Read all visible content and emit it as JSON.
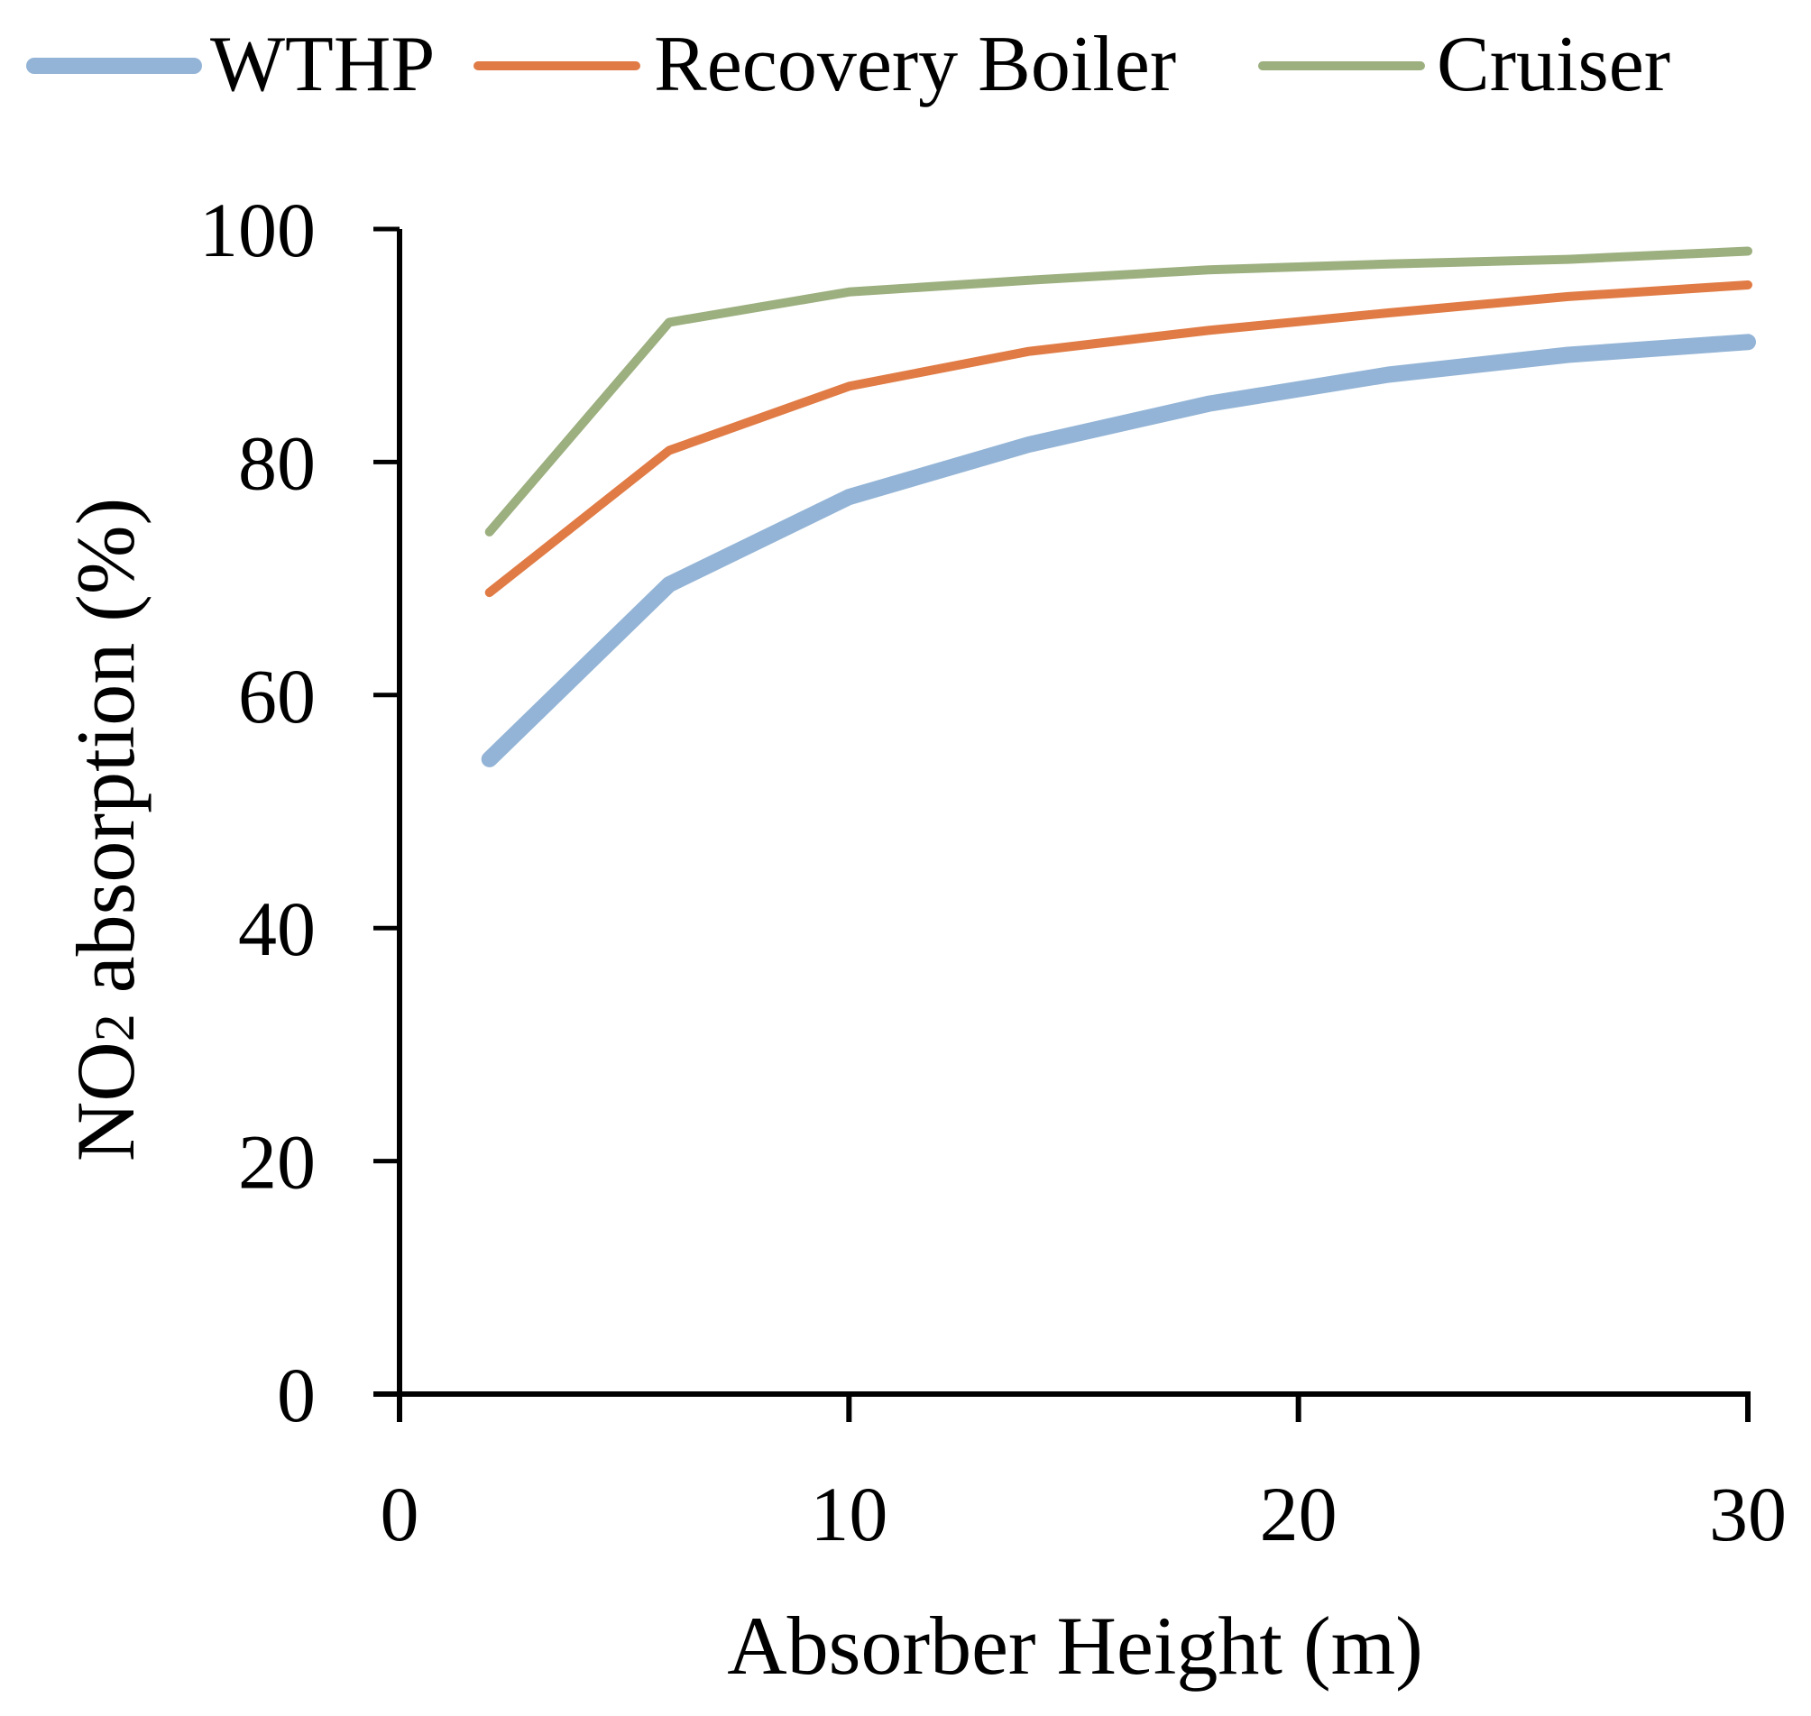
{
  "chart_data": {
    "type": "line",
    "title": "",
    "xlabel": "Absorber Height (m)",
    "ylabel_main": "NO",
    "ylabel_sub": "2",
    "ylabel_rest": " absorption  (%)",
    "xlim": [
      0,
      30
    ],
    "ylim": [
      0,
      100
    ],
    "xticks": [
      "0",
      "10",
      "20",
      "30"
    ],
    "yticks": [
      "0",
      "20",
      "40",
      "60",
      "80",
      "100"
    ],
    "legend_position": "top",
    "grid": false,
    "x": [
      2,
      6,
      10,
      14,
      18,
      22,
      26,
      30
    ],
    "series": [
      {
        "name": "WTHP",
        "color": "#93b4d6",
        "values": [
          54.5,
          69.5,
          77,
          81.5,
          85,
          87.5,
          89.2,
          90.3
        ]
      },
      {
        "name": "Recovery Boiler",
        "color": "#e07b45",
        "values": [
          68.8,
          81,
          86.5,
          89.5,
          91.3,
          92.8,
          94.2,
          95.2
        ]
      },
      {
        "name": "Cruiser",
        "color": "#9caf7f",
        "values": [
          74,
          92,
          94.6,
          95.6,
          96.5,
          97,
          97.4,
          98.1
        ]
      }
    ]
  }
}
